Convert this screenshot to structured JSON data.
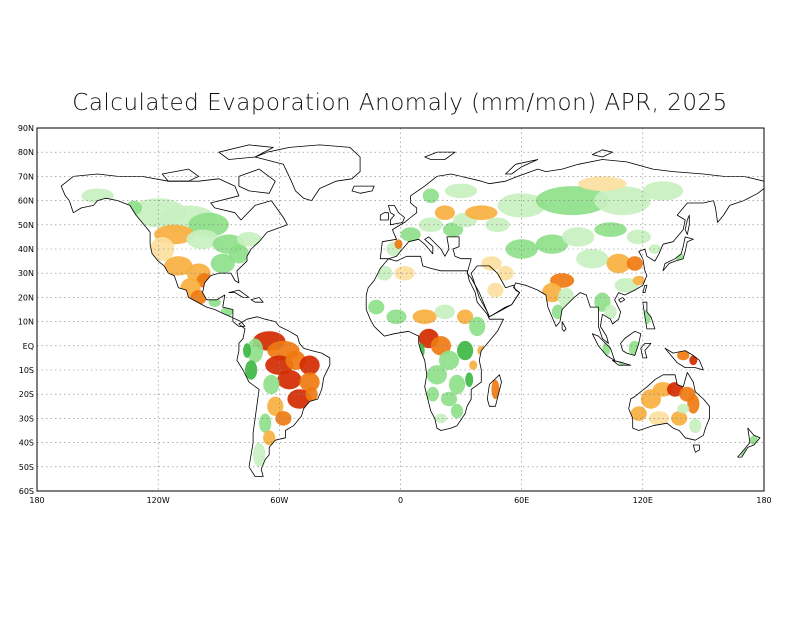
{
  "title": "Calculated Evaporation Anomaly (mm/mon) APR, 2025",
  "map": {
    "type": "global-anomaly-map",
    "variable": "Calculated Evaporation Anomaly",
    "units": "mm/mon",
    "month": "APR",
    "year": "2025",
    "lat_range": [
      -60,
      90
    ],
    "lon_range": [
      -180,
      180
    ],
    "grid": true,
    "lat_labels": [
      "90N",
      "80N",
      "70N",
      "60N",
      "50N",
      "40N",
      "30N",
      "20N",
      "10N",
      "EQ",
      "10S",
      "20S",
      "30S",
      "40S",
      "50S",
      "60S"
    ],
    "lon_labels": [
      "180",
      "120W",
      "60W",
      "0",
      "60E",
      "120E",
      "180"
    ],
    "colors": {
      "strong_negative": "#d42a00",
      "negative": "#f07a10",
      "mild_negative": "#f8b040",
      "weak_negative": "#fde0a0",
      "weak_positive": "#c8f0c0",
      "positive": "#8ee08a",
      "strong_positive": "#3fb845",
      "very_strong_positive": "#157a2a",
      "coastline": "#000000",
      "gridline": "#808080"
    }
  }
}
